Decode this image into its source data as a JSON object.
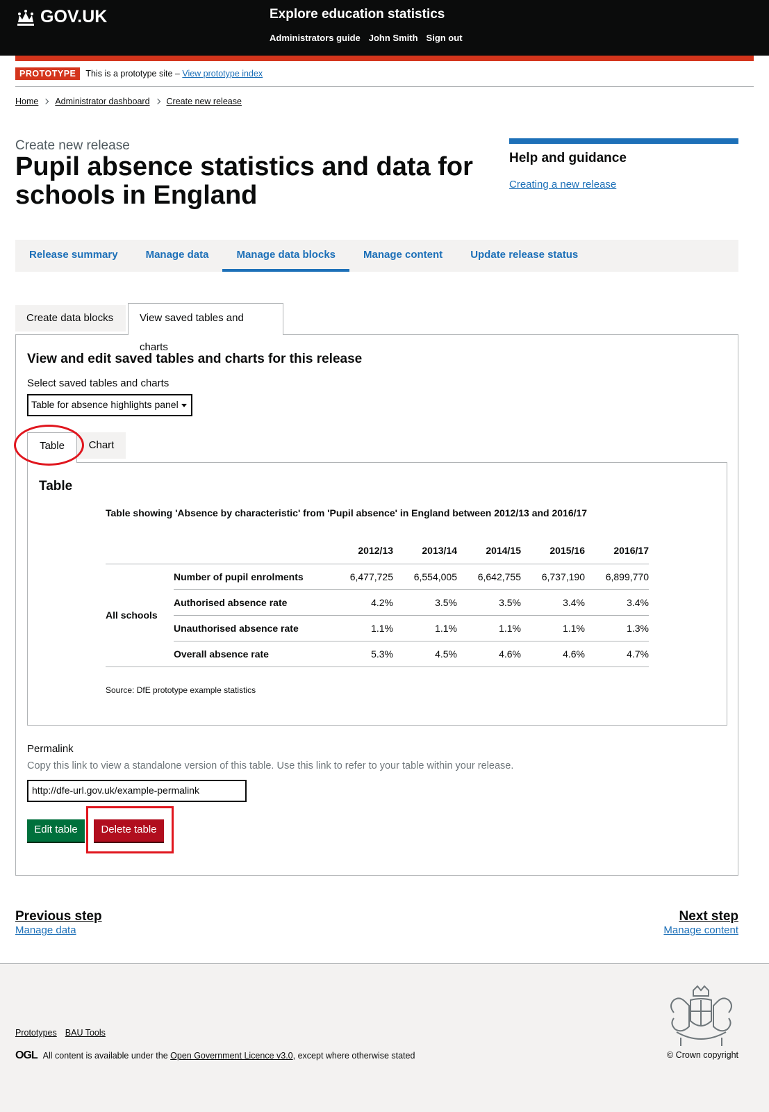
{
  "header": {
    "logo": "GOV.UK",
    "service": "Explore education statistics",
    "links": [
      "Administrators guide",
      "John Smith",
      "Sign out"
    ]
  },
  "prototype": {
    "tag": "PROTOTYPE",
    "text": "This is a prototype site –",
    "link": "View prototype index"
  },
  "breadcrumbs": [
    "Home",
    "Administrator dashboard",
    "Create new release"
  ],
  "caption": "Create new release",
  "title": "Pupil absence statistics and data for schools in England",
  "help": {
    "heading": "Help and guidance",
    "link": "Creating a new release"
  },
  "nav": {
    "items": [
      "Release summary",
      "Manage data",
      "Manage data blocks",
      "Manage content",
      "Update release status"
    ],
    "active": "Manage data blocks"
  },
  "tabs": {
    "create": "Create data blocks",
    "view": "View saved tables and charts"
  },
  "panel": {
    "heading": "View and edit saved tables and charts for this release",
    "select_label": "Select saved tables and charts",
    "select_value": "Table for absence highlights panel"
  },
  "subtabs": {
    "table": "Table",
    "chart": "Chart"
  },
  "table": {
    "heading": "Table",
    "caption": "Table showing 'Absence by characteristic' from 'Pupil absence' in England between 2012/13 and 2016/17",
    "columns": [
      "2012/13",
      "2013/14",
      "2014/15",
      "2015/16",
      "2016/17"
    ],
    "group": "All schools",
    "rows": [
      {
        "label": "Number of pupil enrolments",
        "values": [
          "6,477,725",
          "6,554,005",
          "6,642,755",
          "6,737,190",
          "6,899,770"
        ]
      },
      {
        "label": "Authorised absence rate",
        "values": [
          "4.2%",
          "3.5%",
          "3.5%",
          "3.4%",
          "3.4%"
        ]
      },
      {
        "label": "Unauthorised absence rate",
        "values": [
          "1.1%",
          "1.1%",
          "1.1%",
          "1.1%",
          "1.3%"
        ]
      },
      {
        "label": "Overall absence rate",
        "values": [
          "5.3%",
          "4.5%",
          "4.6%",
          "4.6%",
          "4.7%"
        ]
      }
    ],
    "source": "Source: DfE prototype example statistics"
  },
  "permalink": {
    "label": "Permalink",
    "hint": "Copy this link to view a standalone version of this table. Use this link to refer to your table within your release.",
    "value": "http://dfe-url.gov.uk/example-permalink"
  },
  "buttons": {
    "edit": "Edit table",
    "delete": "Delete table"
  },
  "steps": {
    "previous_title": "Previous step",
    "previous_link": "Manage data",
    "next_title": "Next step",
    "next_link": "Manage content"
  },
  "footer": {
    "links": [
      "Prototypes",
      "BAU Tools"
    ],
    "ogl": "OGL",
    "licence_before": "All content is available under the",
    "licence_link": "Open Government Licence v3.0",
    "licence_after": ", except where otherwise stated",
    "copyright": "© Crown copyright"
  },
  "colors": {
    "header": "#0b0c0c",
    "accent_red": "#d4351c",
    "link_blue": "#1d70b8",
    "edit_green": "#00703c",
    "delete_red": "#b10e1e",
    "annotation_red": "#e0161e"
  },
  "icons": [
    "crown-icon",
    "chevron-right-icon",
    "dropdown-arrow-icon",
    "royal-crest-icon"
  ]
}
